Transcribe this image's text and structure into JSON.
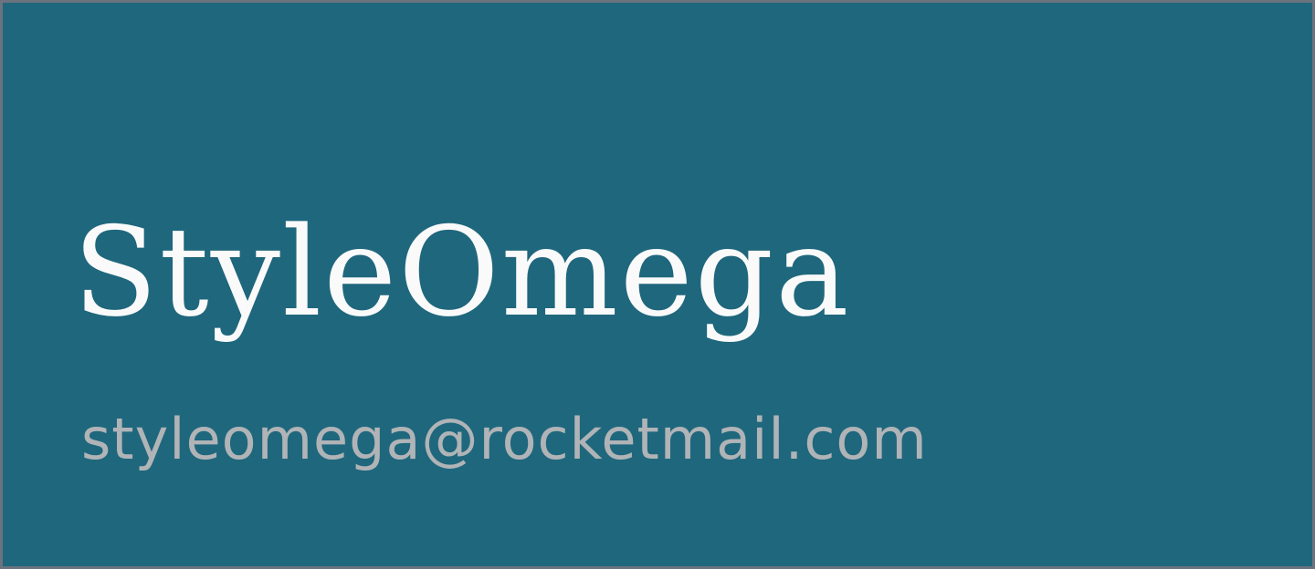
{
  "brand": {
    "name": "StyleOmega"
  },
  "contact": {
    "email": "styleomega@rocketmail.com"
  },
  "colors": {
    "background": "#1f677d",
    "border": "#6b737e",
    "brand_text": "#fafafa",
    "email_text": "#b0b4b7"
  }
}
